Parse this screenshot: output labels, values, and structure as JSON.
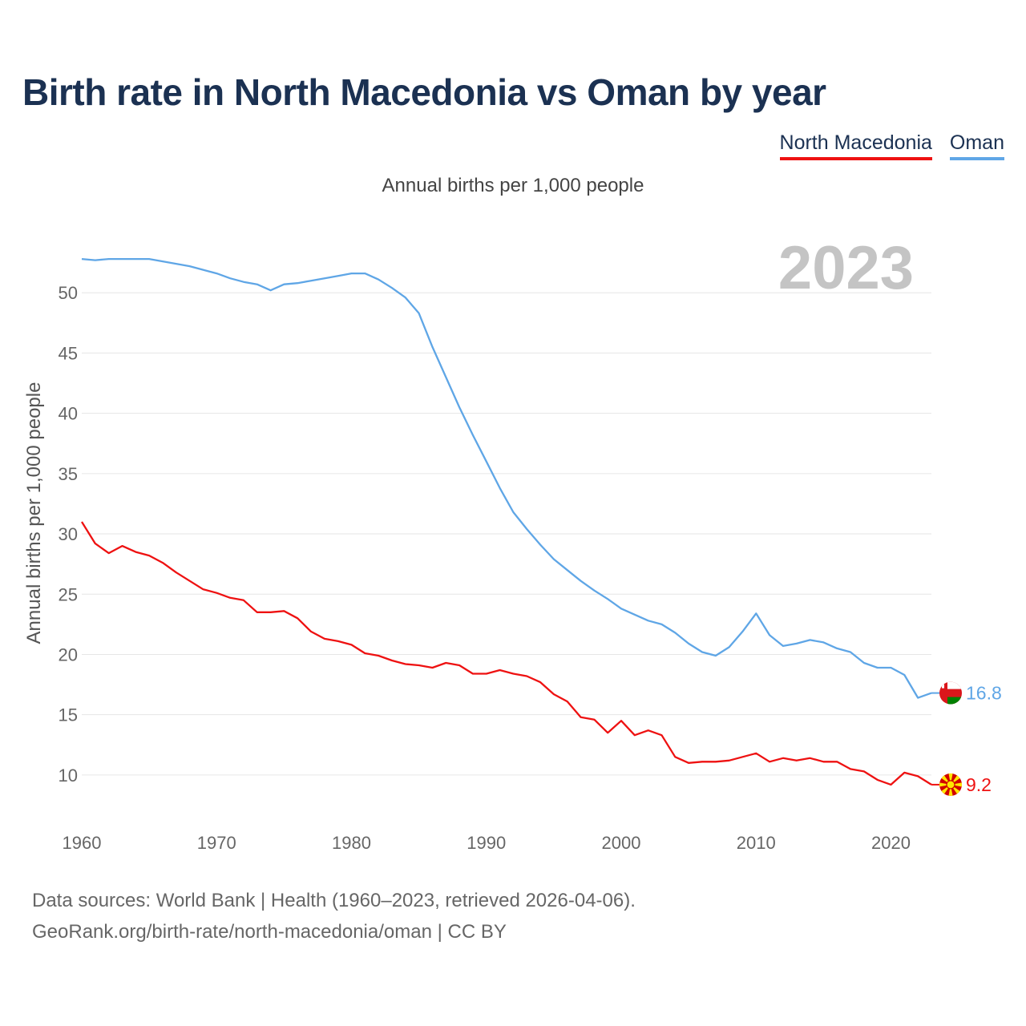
{
  "title": "Birth rate in North Macedonia vs Oman by year",
  "subtitle": "Annual births per 1,000 people",
  "legend": [
    {
      "label": "North Macedonia",
      "color": "#ee1111"
    },
    {
      "label": "Oman",
      "color": "#5fa6e6"
    }
  ],
  "year_overlay": "2023",
  "footer": {
    "line1": "Data sources: World Bank | Health (1960–2023, retrieved 2026-04-06).",
    "line2": "GeoRank.org/birth-rate/north-macedonia/oman | CC BY"
  },
  "chart_data": {
    "type": "line",
    "title": "Birth rate in North Macedonia vs Oman by year",
    "xlabel": "",
    "ylabel": "Annual births per 1,000 people",
    "xlim": [
      1960,
      2023
    ],
    "ylim": [
      7,
      55
    ],
    "x_ticks": [
      1960,
      1970,
      1980,
      1990,
      2000,
      2010,
      2020
    ],
    "y_ticks": [
      10,
      15,
      20,
      25,
      30,
      35,
      40,
      45,
      50
    ],
    "grid": true,
    "x": [
      1960,
      1961,
      1962,
      1963,
      1964,
      1965,
      1966,
      1967,
      1968,
      1969,
      1970,
      1971,
      1972,
      1973,
      1974,
      1975,
      1976,
      1977,
      1978,
      1979,
      1980,
      1981,
      1982,
      1983,
      1984,
      1985,
      1986,
      1987,
      1988,
      1989,
      1990,
      1991,
      1992,
      1993,
      1994,
      1995,
      1996,
      1997,
      1998,
      1999,
      2000,
      2001,
      2002,
      2003,
      2004,
      2005,
      2006,
      2007,
      2008,
      2009,
      2010,
      2011,
      2012,
      2013,
      2014,
      2015,
      2016,
      2017,
      2018,
      2019,
      2020,
      2021,
      2022,
      2023
    ],
    "series": [
      {
        "name": "North Macedonia",
        "color": "#ee1111",
        "end_label": "9.2",
        "values": [
          31.0,
          29.2,
          28.4,
          29.0,
          28.5,
          28.2,
          27.6,
          26.8,
          26.1,
          25.4,
          25.1,
          24.7,
          24.5,
          23.5,
          23.5,
          23.6,
          23.0,
          21.9,
          21.3,
          21.1,
          20.8,
          20.1,
          19.9,
          19.5,
          19.2,
          19.1,
          18.9,
          19.3,
          19.1,
          18.4,
          18.4,
          18.7,
          18.4,
          18.2,
          17.7,
          16.7,
          16.1,
          14.8,
          14.6,
          13.5,
          14.5,
          13.3,
          13.7,
          13.3,
          11.5,
          11.0,
          11.1,
          11.1,
          11.2,
          11.5,
          11.8,
          11.1,
          11.4,
          11.2,
          11.4,
          11.1,
          11.1,
          10.5,
          10.3,
          9.6,
          9.2,
          10.2,
          9.9,
          9.2
        ]
      },
      {
        "name": "Oman",
        "color": "#5fa6e6",
        "end_label": "16.8",
        "values": [
          52.8,
          52.7,
          52.8,
          52.8,
          52.8,
          52.8,
          52.6,
          52.4,
          52.2,
          51.9,
          51.6,
          51.2,
          50.9,
          50.7,
          50.2,
          50.7,
          50.8,
          51.0,
          51.2,
          51.4,
          51.6,
          51.6,
          51.1,
          50.4,
          49.6,
          48.3,
          45.5,
          43.0,
          40.5,
          38.2,
          36.0,
          33.8,
          31.8,
          30.4,
          29.1,
          27.9,
          27.0,
          26.1,
          25.3,
          24.6,
          23.8,
          23.3,
          22.8,
          22.5,
          21.8,
          20.9,
          20.2,
          19.9,
          20.6,
          21.9,
          23.4,
          21.6,
          20.7,
          20.9,
          21.2,
          21.0,
          20.5,
          20.2,
          19.3,
          18.9,
          18.9,
          18.3,
          16.4,
          16.8
        ]
      }
    ]
  }
}
